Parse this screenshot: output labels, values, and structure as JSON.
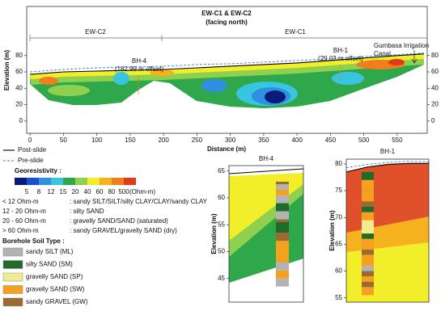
{
  "chart_data": [
    {
      "type": "section",
      "title": "EW-C1 & EW-C2",
      "subtitle": "(facing north)",
      "xlabel": "Distance (m)",
      "ylabel": "Elevation (m)",
      "xlim": [
        -5,
        595
      ],
      "ylim": [
        -15,
        140
      ],
      "xticks": [
        0,
        50,
        100,
        150,
        200,
        250,
        300,
        350,
        400,
        450,
        500,
        550
      ],
      "yticks": [
        0,
        20,
        40,
        60,
        80
      ],
      "y2lim": [
        -15,
        140
      ],
      "y2ticks": [
        0,
        20,
        40,
        60,
        80
      ],
      "sections": [
        "EW-C2",
        "EW-C1"
      ],
      "annotations": [
        "BH-4",
        "(182.99 m offset)",
        "BH-1",
        "(29.03 m offset)",
        "Gumbasa Irrigation",
        "Canal"
      ],
      "legend": "bottom left",
      "series": [
        {
          "name": "Post-slide",
          "color": "#000000",
          "dashed": false,
          "x": [
            0,
            50,
            100,
            150,
            200,
            250,
            300,
            350,
            400,
            450,
            500,
            550,
            590
          ],
          "values": [
            57,
            60,
            61,
            62,
            63,
            65,
            67,
            69,
            71,
            74,
            77,
            80,
            82
          ]
        },
        {
          "name": "Pre-slide",
          "color": "#3a7bd5",
          "dashed": true,
          "x": [
            0,
            50,
            100,
            150,
            200,
            250,
            300,
            350,
            400,
            450,
            500,
            550,
            590
          ],
          "values": [
            60,
            63,
            65,
            66,
            67,
            69,
            70,
            72,
            74,
            76,
            79,
            81,
            83
          ]
        }
      ]
    },
    {
      "type": "borehole",
      "title": "BH-4",
      "ylabel": "Elevation (m)",
      "ylim": [
        40.6,
        66
      ],
      "yticks": [
        45,
        50,
        55,
        60,
        65
      ],
      "series": [
        {
          "name": "Post-slide",
          "color": "#000000",
          "dashed": false,
          "values": [
            64.5,
            64.8,
            65.1,
            65.4
          ]
        }
      ],
      "layers": [
        {
          "top": 63,
          "bottom": 62.5,
          "color": "#9c6b34"
        },
        {
          "top": 62.5,
          "bottom": 61.5,
          "color": "#b3b3b3"
        },
        {
          "top": 61.5,
          "bottom": 60.5,
          "color": "#f5a01e"
        },
        {
          "top": 60.5,
          "bottom": 59,
          "color": "#b3b3b3"
        },
        {
          "top": 59,
          "bottom": 57.5,
          "color": "#1e6b2a"
        },
        {
          "top": 57.5,
          "bottom": 56,
          "color": "#b3b3b3"
        },
        {
          "top": 56,
          "bottom": 55.5,
          "color": "#9c6b34"
        },
        {
          "top": 55.5,
          "bottom": 53.5,
          "color": "#1e6b2a"
        },
        {
          "top": 53.5,
          "bottom": 52,
          "color": "#9c6b34"
        },
        {
          "top": 52,
          "bottom": 48,
          "color": "#f5a01e"
        },
        {
          "top": 48,
          "bottom": 46.5,
          "color": "#b3b3b3"
        },
        {
          "top": 46.5,
          "bottom": 45,
          "color": "#f5a01e"
        },
        {
          "top": 45,
          "bottom": 43.5,
          "color": "#b3b3b3"
        }
      ]
    },
    {
      "type": "borehole",
      "title": "BH-1",
      "ylabel": "Elevation (m)",
      "ylim": [
        54.2,
        80.9
      ],
      "yticks": [
        55,
        60,
        65,
        70,
        75,
        80
      ],
      "series": [
        {
          "name": "Post-slide",
          "color": "#000000",
          "dashed": false,
          "values": [
            78.5,
            79.4,
            79.9,
            80.1,
            80.1
          ]
        },
        {
          "name": "Pre-slide",
          "color": "#3a7bd5",
          "dashed": true,
          "values": [
            79.3,
            79.9,
            80.3,
            80.5,
            80.4
          ]
        }
      ],
      "layers": [
        {
          "top": 78.5,
          "bottom": 77,
          "color": "#1e6b2a"
        },
        {
          "top": 77,
          "bottom": 75,
          "color": "#f5a01e"
        },
        {
          "top": 75,
          "bottom": 73,
          "color": "#f5a01e"
        },
        {
          "top": 73,
          "bottom": 72,
          "color": "#9c6b34"
        },
        {
          "top": 72,
          "bottom": 71,
          "color": "#1e6b2a"
        },
        {
          "top": 71,
          "bottom": 69.5,
          "color": "#f5a01e"
        },
        {
          "top": 69.5,
          "bottom": 67,
          "color": "#f0eb8c"
        },
        {
          "top": 67,
          "bottom": 66,
          "color": "#1e6b2a"
        },
        {
          "top": 66,
          "bottom": 64,
          "color": "#f5a01e"
        },
        {
          "top": 64,
          "bottom": 63,
          "color": "#9c6b34"
        },
        {
          "top": 63,
          "bottom": 61,
          "color": "#f5a01e"
        },
        {
          "top": 61,
          "bottom": 60,
          "color": "#b3b3b3"
        },
        {
          "top": 60,
          "bottom": 59,
          "color": "#9c6b34"
        },
        {
          "top": 59,
          "bottom": 58,
          "color": "#f5a01e"
        },
        {
          "top": 58,
          "bottom": 57,
          "color": "#9c6b34"
        },
        {
          "top": 57,
          "bottom": 55.5,
          "color": "#f5a01e"
        }
      ]
    }
  ],
  "colorbar": {
    "title": "Georesistivity :",
    "unit": "(Ohm-m)",
    "ticks": [
      5,
      8,
      12,
      15,
      20,
      40,
      60,
      80,
      500
    ],
    "colors": [
      "#0a1a7a",
      "#1a4fd0",
      "#2f8fe0",
      "#39c4e0",
      "#2ea84a",
      "#8fd14f",
      "#f2ee2a",
      "#f5b21e",
      "#f07d1e",
      "#e03a1a"
    ]
  },
  "resistivity_notes": [
    {
      "range": "< 12 Ohm-m",
      "soil": ": sandy SILT/SILT/silty CLAY/CLAY/sandy CLAY"
    },
    {
      "range": "12 - 20 Ohm-m",
      "soil": ": silty SAND"
    },
    {
      "range": "20 - 60 Ohm-m",
      "soil": ": gravelly SAND/SAND (saturated)"
    },
    {
      "range": "> 60 Ohm-m",
      "soil": ": sandy GRAVEL/gravelly SAND (dry)"
    }
  ],
  "soil_legend": {
    "title": "Borehole Soil Type :",
    "items": [
      {
        "name": "sandy SILT (ML)",
        "color": "#b3b3b3"
      },
      {
        "name": "silty SAND (SM)",
        "color": "#1e6b2a"
      },
      {
        "name": "gravelly SAND (SP)",
        "color": "#f0eb8c"
      },
      {
        "name": "gravelly SAND (SW)",
        "color": "#f5a01e"
      },
      {
        "name": "sandy GRAVEL (GW)",
        "color": "#9c6b34"
      }
    ]
  }
}
